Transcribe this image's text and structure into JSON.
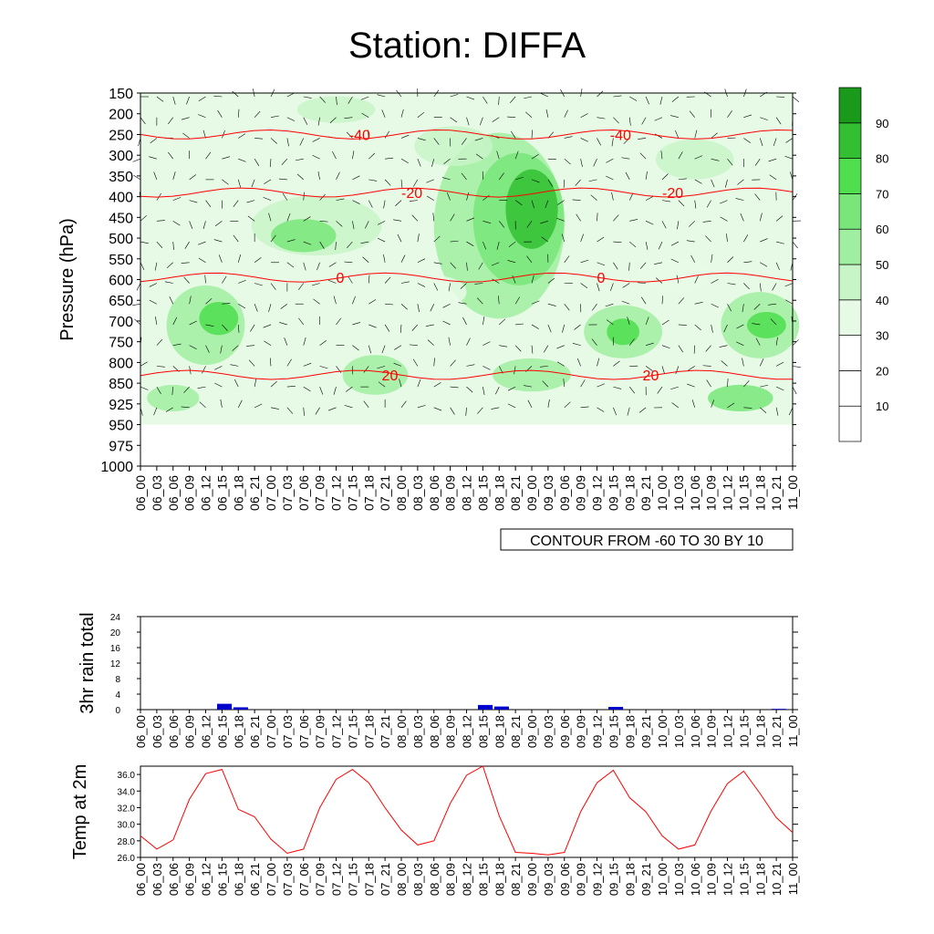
{
  "title": "Station: DIFFA",
  "chart_data": [
    {
      "type": "heatmap",
      "description_note": "",
      "ylabel": "Pressure (hPa)",
      "y_ticks": [
        "150",
        "200",
        "250",
        "300",
        "350",
        "400",
        "450",
        "500",
        "550",
        "600",
        "650",
        "700",
        "750",
        "800",
        "850",
        "925",
        "950",
        "975",
        "1000"
      ],
      "x_ticks": [
        "06_00",
        "06_03",
        "06_06",
        "06_09",
        "06_12",
        "06_15",
        "06_18",
        "06_21",
        "07_00",
        "07_03",
        "07_06",
        "07_09",
        "07_12",
        "07_15",
        "07_18",
        "07_21",
        "08_00",
        "08_03",
        "08_06",
        "08_09",
        "08_12",
        "08_15",
        "08_18",
        "08_21",
        "09_00",
        "09_03",
        "09_06",
        "09_09",
        "09_12",
        "09_15",
        "09_18",
        "09_21",
        "10_00",
        "10_03",
        "10_06",
        "10_09",
        "10_12",
        "10_15",
        "10_18",
        "10_21",
        "11_00"
      ],
      "contour_info": "CONTOUR FROM -60 TO 30 BY 10",
      "colorbar_labels": [
        "10",
        "20",
        "30",
        "40",
        "50",
        "60",
        "70",
        "80",
        "90"
      ],
      "colorbar_colors": [
        "#ffffff",
        "#ffffff",
        "#ffffff",
        "#e6fae6",
        "#c8f5c8",
        "#a0eea0",
        "#78e678",
        "#4ede4e",
        "#32c032",
        "#1a9a1a"
      ],
      "temperature_contours": [
        {
          "label": "-40",
          "level": 250
        },
        {
          "label": "-20",
          "level": 390
        },
        {
          "label": "0",
          "level": 595
        },
        {
          "label": "20",
          "level": 830
        }
      ],
      "rh_labels": [
        "50",
        "30",
        "70",
        "90"
      ]
    },
    {
      "type": "bar",
      "ylabel": "3hr rain total",
      "ylim": [
        0,
        24
      ],
      "y_ticks": [
        "0",
        "4",
        "8",
        "12",
        "16",
        "20",
        "24"
      ],
      "categories": [
        "06_00",
        "06_03",
        "06_06",
        "06_09",
        "06_12",
        "06_15",
        "06_18",
        "06_21",
        "07_00",
        "07_03",
        "07_06",
        "07_09",
        "07_12",
        "07_15",
        "07_18",
        "07_21",
        "08_00",
        "08_03",
        "08_06",
        "08_09",
        "08_12",
        "08_15",
        "08_18",
        "08_21",
        "09_00",
        "09_03",
        "09_06",
        "09_09",
        "09_12",
        "09_15",
        "09_18",
        "09_21",
        "10_00",
        "10_03",
        "10_06",
        "10_09",
        "10_12",
        "10_15",
        "10_18",
        "10_21",
        "11_00"
      ],
      "values": [
        0,
        0,
        0,
        0,
        0,
        1.5,
        0.6,
        0,
        0,
        0,
        0,
        0,
        0,
        0,
        0,
        0,
        0,
        0,
        0,
        0,
        0,
        1.2,
        0.8,
        0,
        0,
        0,
        0,
        0,
        0,
        0.7,
        0,
        0,
        0,
        0,
        0,
        0,
        0,
        0,
        0,
        0.2,
        0
      ],
      "bar_color": "#0000cc"
    },
    {
      "type": "line",
      "ylabel": "Temp at 2m",
      "ylim": [
        26.0,
        37.0
      ],
      "y_ticks": [
        "26.0",
        "28.0",
        "30.0",
        "32.0",
        "34.0",
        "36.0"
      ],
      "x": [
        "06_00",
        "06_03",
        "06_06",
        "06_09",
        "06_12",
        "06_15",
        "06_18",
        "06_21",
        "07_00",
        "07_03",
        "07_06",
        "07_09",
        "07_12",
        "07_15",
        "07_18",
        "07_21",
        "08_00",
        "08_03",
        "08_06",
        "08_09",
        "08_12",
        "08_15",
        "08_18",
        "08_21",
        "09_00",
        "09_03",
        "09_06",
        "09_09",
        "09_12",
        "09_15",
        "09_18",
        "09_21",
        "10_00",
        "10_03",
        "10_06",
        "10_09",
        "10_12",
        "10_15",
        "10_18",
        "10_21",
        "11_00"
      ],
      "values": [
        28.6,
        27.0,
        28.1,
        33.0,
        36.1,
        36.6,
        31.8,
        30.9,
        28.2,
        26.5,
        27.0,
        32.0,
        35.4,
        36.6,
        35.0,
        32.0,
        29.3,
        27.5,
        28.0,
        32.5,
        35.9,
        37.0,
        31.0,
        26.6,
        26.5,
        26.3,
        26.6,
        31.5,
        35.0,
        36.5,
        33.2,
        31.5,
        28.6,
        27.0,
        27.5,
        31.6,
        34.9,
        36.4,
        33.7,
        30.8,
        29.0
      ],
      "line_color": "#ff0000"
    }
  ]
}
